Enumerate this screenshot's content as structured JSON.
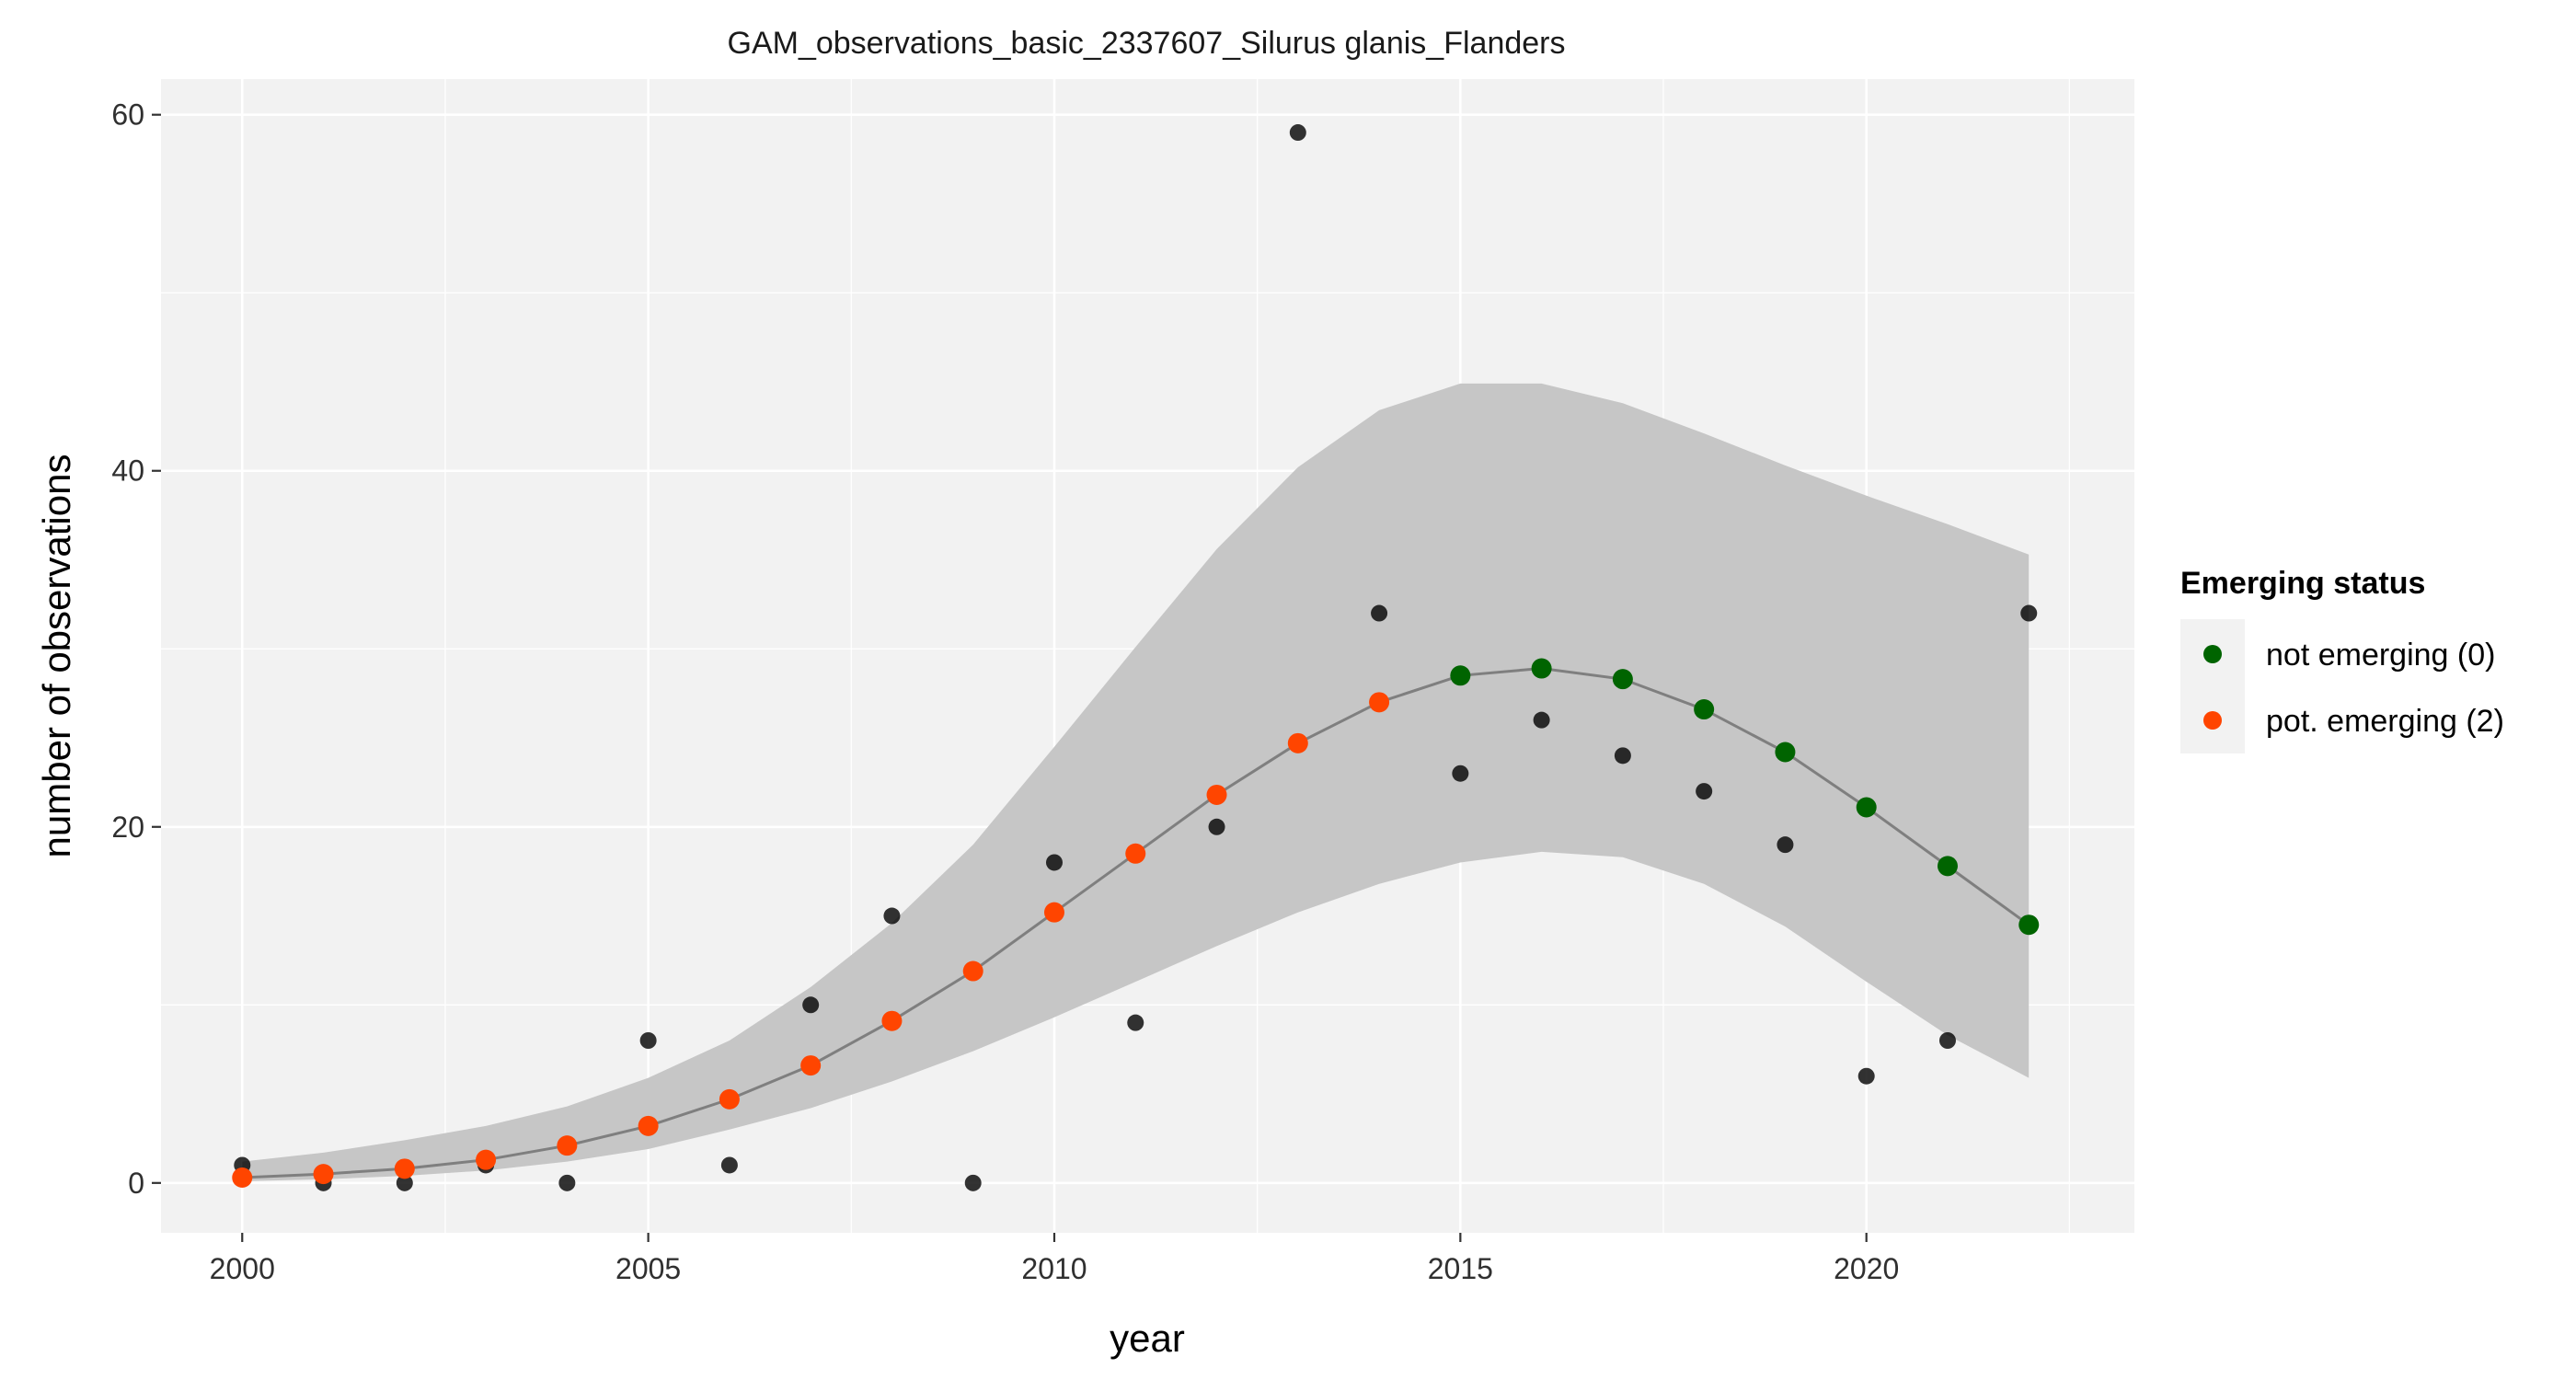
{
  "chart_data": {
    "type": "scatter",
    "title": "GAM_observations_basic_2337607_Silurus glanis_Flanders",
    "xlabel": "year",
    "ylabel": "number of observations",
    "xlim": [
      1999,
      2023.3
    ],
    "ylim": [
      -2.8,
      62
    ],
    "x_ticks": [
      2000,
      2005,
      2010,
      2015,
      2020
    ],
    "y_ticks": [
      0,
      20,
      40,
      60
    ],
    "grid": true,
    "legend_placement": "right",
    "legend_title": "Emerging status",
    "colors": {
      "panel_background": "#f2f2f2",
      "grid": "#ffffff",
      "ribbon": "#c6c6c6",
      "fit_line": "#7f7f7f",
      "observed_points": "#000000",
      "not_emerging": "#006400",
      "pot_emerging": "#ff4500"
    },
    "observed": {
      "x": [
        2000,
        2001,
        2002,
        2003,
        2004,
        2005,
        2006,
        2007,
        2008,
        2009,
        2010,
        2011,
        2012,
        2013,
        2014,
        2015,
        2016,
        2017,
        2018,
        2019,
        2020,
        2021,
        2022
      ],
      "y": [
        1,
        0,
        0,
        1,
        0,
        8,
        1,
        10,
        15,
        0,
        18,
        9,
        20,
        59,
        32,
        23,
        26,
        24,
        22,
        19,
        6,
        8,
        32
      ]
    },
    "fit": {
      "x": [
        2000,
        2001,
        2002,
        2003,
        2004,
        2005,
        2006,
        2007,
        2008,
        2009,
        2010,
        2011,
        2012,
        2013,
        2014,
        2015,
        2016,
        2017,
        2018,
        2019,
        2020,
        2021,
        2022
      ],
      "y": [
        0.3,
        0.5,
        0.8,
        1.3,
        2.1,
        3.2,
        4.7,
        6.6,
        9.1,
        11.9,
        15.2,
        18.5,
        21.8,
        24.7,
        27.0,
        28.5,
        28.9,
        28.3,
        26.6,
        24.2,
        21.1,
        17.8,
        14.5
      ],
      "lower": [
        0.1,
        0.2,
        0.4,
        0.7,
        1.2,
        1.9,
        3.0,
        4.2,
        5.7,
        7.4,
        9.3,
        11.3,
        13.3,
        15.2,
        16.8,
        18.0,
        18.6,
        18.3,
        16.8,
        14.4,
        11.3,
        8.3,
        5.9
      ],
      "upper": [
        1.2,
        1.7,
        2.4,
        3.2,
        4.3,
        5.9,
        8.0,
        11.0,
        14.6,
        19.0,
        24.5,
        30.1,
        35.6,
        40.2,
        43.4,
        44.9,
        44.9,
        43.8,
        42.1,
        40.3,
        38.6,
        37.0,
        35.3
      ],
      "status": [
        2,
        2,
        2,
        2,
        2,
        2,
        2,
        2,
        2,
        2,
        2,
        2,
        2,
        2,
        2,
        0,
        0,
        0,
        0,
        0,
        0,
        0,
        0
      ]
    },
    "series": [
      {
        "name": "not emerging (0)",
        "status": 0
      },
      {
        "name": "pot. emerging (2)",
        "status": 2
      }
    ]
  }
}
